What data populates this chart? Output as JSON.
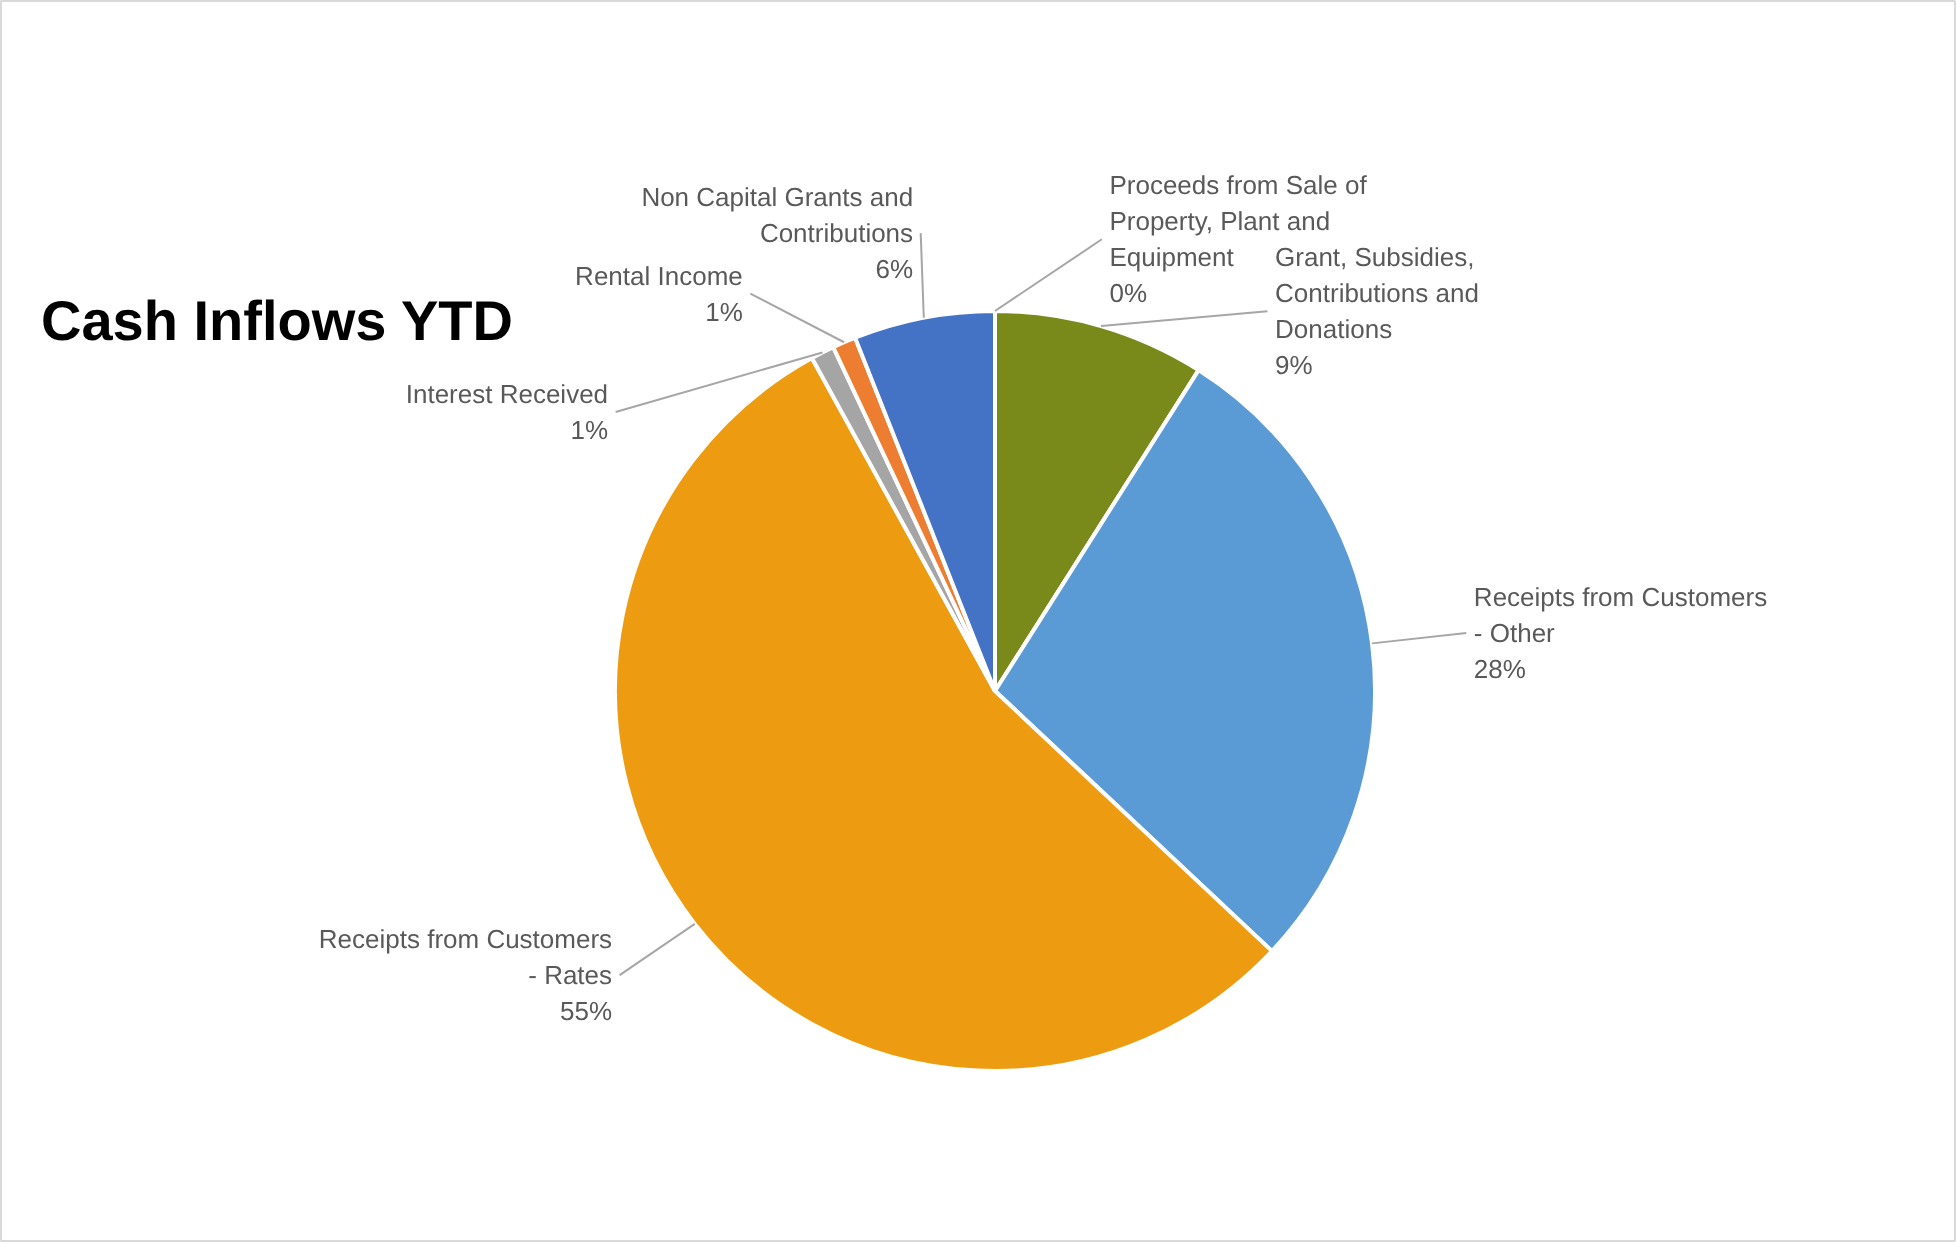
{
  "chart_data": {
    "type": "pie",
    "title": "Cash Inflows YTD",
    "categories": [
      "Proceeds from Sale of Property, Plant and Equipment",
      "Grant, Subsidies, Contributions and Donations",
      "Receipts from Customers - Other",
      "Receipts from Customers - Rates",
      "Interest Received",
      "Rental Income",
      "Non Capital Grants and Contributions"
    ],
    "values": [
      0,
      9,
      28,
      55,
      1,
      1,
      6
    ],
    "value_labels": [
      "0%",
      "9%",
      "28%",
      "55%",
      "1%",
      "1%",
      "6%"
    ],
    "colors": [
      "#70ad47",
      "#7a8a1a",
      "#5b9bd5",
      "#ed9c12",
      "#a5a5a5",
      "#ed7d31",
      "#4472c4"
    ],
    "legend": false
  }
}
